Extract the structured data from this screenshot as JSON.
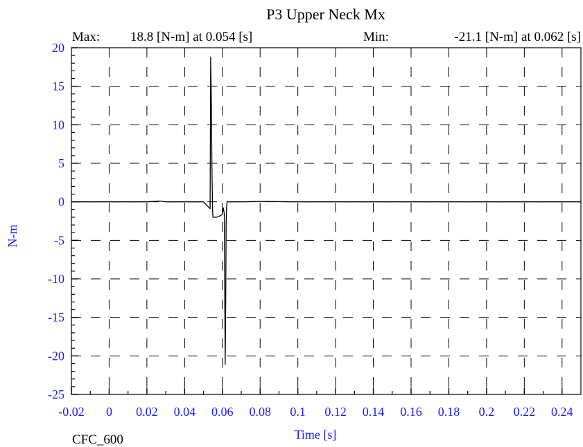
{
  "chart_data": {
    "type": "line",
    "title": "P3 Upper Neck Mx",
    "stats": {
      "max_label": "Max:",
      "max_text": "18.8 [N-m] at 0.054 [s]",
      "min_label": "Min:",
      "min_text": "-21.1 [N-m] at 0.062 [s]"
    },
    "xlabel": "Time [s]",
    "ylabel": "N-m",
    "filter_label": "CFC_600",
    "xlim": [
      -0.02,
      0.25
    ],
    "ylim": [
      -25,
      20
    ],
    "x_ticks": [
      -0.02,
      0,
      0.02,
      0.04,
      0.06,
      0.08,
      0.1,
      0.12,
      0.14,
      0.16,
      0.18,
      0.2,
      0.22,
      0.24
    ],
    "x_tick_labels": [
      "-0.02",
      "0",
      "0.02",
      "0.04",
      "0.06",
      "0.08",
      "0.1",
      "0.12",
      "0.14",
      "0.16",
      "0.18",
      "0.2",
      "0.22",
      "0.24"
    ],
    "y_ticks": [
      20,
      15,
      10,
      5,
      0,
      -5,
      -10,
      -15,
      -20,
      -25
    ],
    "y_tick_labels": [
      "20",
      "15",
      "10",
      "5",
      "0",
      "-5",
      "-10",
      "-15",
      "-20",
      "-25"
    ],
    "grid": true,
    "colors": {
      "line": "#000000",
      "ticks": "#1a1aff",
      "grid": "#000000"
    },
    "series": [
      {
        "x": [
          -0.02,
          0.0,
          0.02,
          0.027,
          0.03,
          0.04,
          0.05,
          0.0535,
          0.0538,
          0.0542,
          0.0545,
          0.0548,
          0.055,
          0.057,
          0.059,
          0.06,
          0.0605,
          0.061,
          0.0615,
          0.0618,
          0.062,
          0.0622,
          0.0625,
          0.063,
          0.065,
          0.07,
          0.08,
          0.1,
          0.15,
          0.2,
          0.25
        ],
        "y": [
          0.0,
          0.0,
          0.0,
          0.1,
          0.0,
          0.0,
          0.0,
          -0.9,
          18.8,
          12.0,
          4.0,
          -1.0,
          -2.0,
          -2.0,
          -1.8,
          -1.6,
          -0.8,
          -1.5,
          -21.1,
          -12.0,
          -3.0,
          -0.8,
          0.0,
          0.0,
          0.0,
          0.0,
          0.05,
          0.0,
          0.0,
          0.0,
          0.0
        ]
      }
    ]
  }
}
